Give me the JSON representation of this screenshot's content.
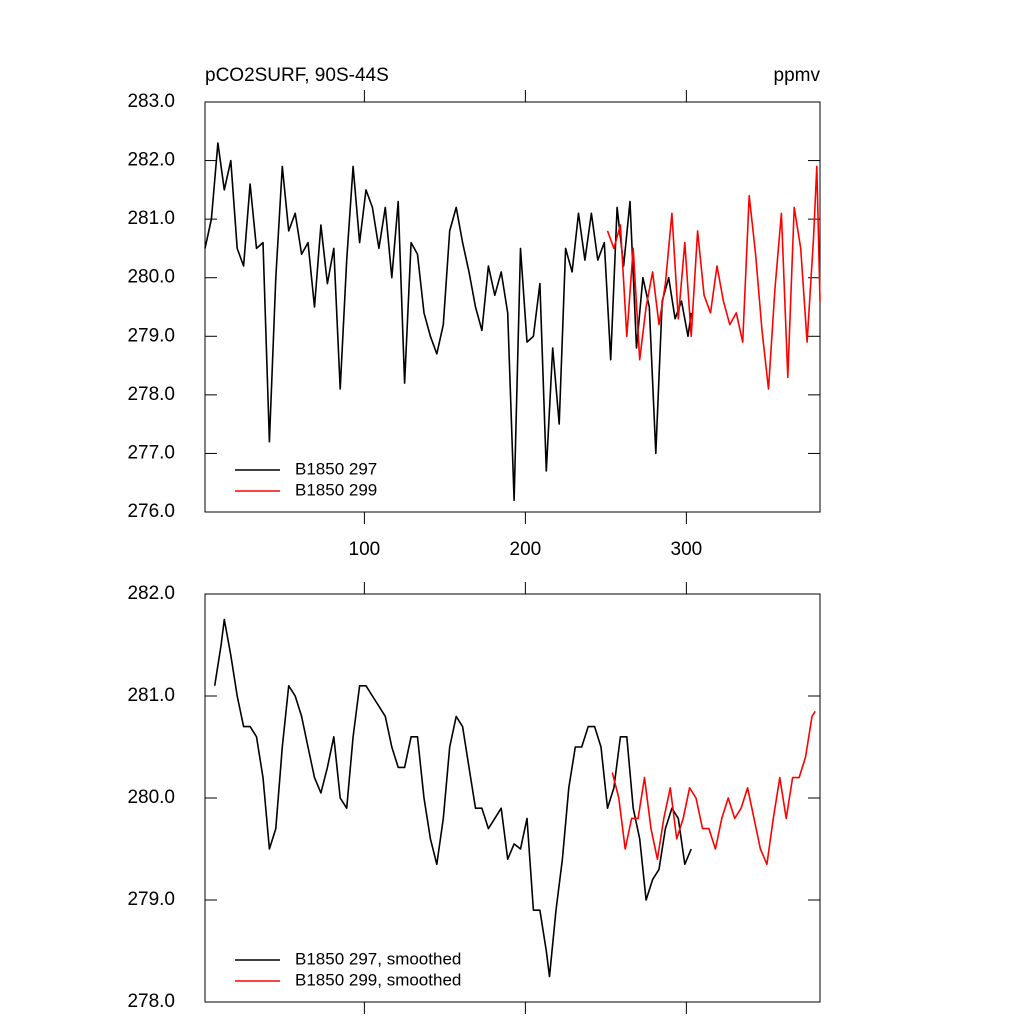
{
  "chart_data": [
    {
      "type": "line",
      "title": "pCO2SURF, 90S-44S",
      "units": "ppmv",
      "xlim": [
        1,
        383
      ],
      "xticks": [
        100,
        200,
        300
      ],
      "ylim": [
        276,
        283
      ],
      "yticks": [
        {
          "value": 276,
          "label": "276.0"
        },
        {
          "value": 277,
          "label": "277.0"
        },
        {
          "value": 278,
          "label": "278.0"
        },
        {
          "value": 279,
          "label": "279.0"
        },
        {
          "value": 280,
          "label": "280.0"
        },
        {
          "value": 281,
          "label": "281.0"
        },
        {
          "value": 282,
          "label": "282.0"
        },
        {
          "value": 283,
          "label": "283.0"
        }
      ],
      "legend": "lower left",
      "series": [
        {
          "name": "B1850 297",
          "color": "#000000",
          "x": [
            1,
            5,
            9,
            13,
            17,
            21,
            25,
            29,
            33,
            37,
            41,
            45,
            49,
            53,
            57,
            61,
            65,
            69,
            73,
            77,
            81,
            85,
            89,
            93,
            97,
            101,
            105,
            109,
            113,
            117,
            121,
            125,
            129,
            133,
            137,
            141,
            145,
            149,
            153,
            157,
            161,
            165,
            169,
            173,
            177,
            181,
            185,
            189,
            193,
            197,
            201,
            205,
            209,
            213,
            217,
            221,
            225,
            229,
            233,
            237,
            241,
            245,
            249,
            253,
            257,
            261,
            265,
            269,
            273,
            277,
            281,
            285,
            289,
            293,
            297,
            301,
            303
          ],
          "values": [
            280.5,
            281.0,
            282.3,
            281.5,
            282.0,
            280.5,
            280.2,
            281.6,
            280.5,
            280.6,
            277.2,
            280.0,
            281.9,
            280.8,
            281.1,
            280.4,
            280.6,
            279.5,
            280.9,
            279.9,
            280.5,
            278.1,
            280.3,
            281.9,
            280.6,
            281.5,
            281.2,
            280.5,
            281.2,
            280.0,
            281.3,
            278.2,
            280.6,
            280.4,
            279.4,
            279.0,
            278.7,
            279.2,
            280.8,
            281.2,
            280.6,
            280.1,
            279.5,
            279.1,
            280.2,
            279.7,
            280.1,
            279.4,
            276.2,
            280.5,
            278.9,
            279.0,
            279.9,
            276.7,
            278.8,
            277.5,
            280.5,
            280.1,
            281.1,
            280.3,
            281.1,
            280.3,
            280.6,
            278.6,
            281.2,
            280.2,
            281.3,
            278.8,
            280.0,
            279.5,
            277.0,
            279.6,
            280.0,
            279.3,
            279.6,
            279.0,
            279.4
          ]
        },
        {
          "name": "B1850 299",
          "color": "#ff0000",
          "x": [
            251,
            255,
            259,
            263,
            267,
            271,
            275,
            279,
            283,
            287,
            291,
            295,
            299,
            303,
            307,
            311,
            315,
            319,
            323,
            327,
            331,
            335,
            339,
            343,
            347,
            351,
            355,
            359,
            363,
            367,
            371,
            375,
            379,
            381,
            383
          ],
          "values": [
            280.8,
            280.5,
            280.9,
            279.0,
            280.5,
            278.6,
            279.5,
            280.1,
            279.2,
            279.9,
            281.1,
            279.3,
            280.6,
            279.0,
            280.8,
            279.7,
            279.4,
            280.2,
            279.6,
            279.2,
            279.4,
            278.9,
            281.4,
            280.4,
            279.1,
            278.1,
            279.8,
            281.1,
            278.3,
            281.2,
            280.5,
            278.9,
            280.7,
            281.9,
            279.6
          ]
        }
      ]
    },
    {
      "type": "line",
      "xlim": [
        1,
        383
      ],
      "ylim": [
        278,
        282
      ],
      "yticks": [
        {
          "value": 278,
          "label": "278.0"
        },
        {
          "value": 279,
          "label": "279.0"
        },
        {
          "value": 280,
          "label": "280.0"
        },
        {
          "value": 281,
          "label": "281.0"
        },
        {
          "value": 282,
          "label": "282.0"
        }
      ],
      "legend": "lower left",
      "series": [
        {
          "name": "B1850 297, smoothed",
          "color": "#000000",
          "x": [
            7,
            11,
            13,
            17,
            21,
            25,
            29,
            33,
            37,
            41,
            45,
            49,
            53,
            57,
            61,
            65,
            69,
            73,
            77,
            81,
            85,
            89,
            93,
            97,
            101,
            105,
            109,
            113,
            117,
            121,
            125,
            129,
            133,
            137,
            141,
            145,
            149,
            153,
            157,
            161,
            165,
            169,
            173,
            177,
            181,
            185,
            189,
            193,
            197,
            201,
            205,
            209,
            213,
            215,
            219,
            223,
            227,
            231,
            235,
            239,
            243,
            247,
            251,
            255,
            259,
            263,
            267,
            271,
            275,
            279,
            283,
            287,
            291,
            295,
            299,
            303
          ],
          "values": [
            281.1,
            281.5,
            281.75,
            281.4,
            281.0,
            280.7,
            280.7,
            280.6,
            280.2,
            279.5,
            279.7,
            280.5,
            281.1,
            281.0,
            280.8,
            280.5,
            280.2,
            280.05,
            280.3,
            280.6,
            280.0,
            279.9,
            280.6,
            281.1,
            281.1,
            281.0,
            280.9,
            280.8,
            280.5,
            280.3,
            280.3,
            280.6,
            280.6,
            280.0,
            279.6,
            279.35,
            279.8,
            280.5,
            280.8,
            280.7,
            280.3,
            279.9,
            279.9,
            279.7,
            279.8,
            279.9,
            279.4,
            279.55,
            279.5,
            279.8,
            278.9,
            278.9,
            278.5,
            278.25,
            278.9,
            279.4,
            280.1,
            280.5,
            280.5,
            280.7,
            280.7,
            280.5,
            279.9,
            280.1,
            280.6,
            280.6,
            279.9,
            279.6,
            279.0,
            279.2,
            279.3,
            279.7,
            279.9,
            279.8,
            279.35,
            279.5
          ]
        },
        {
          "name": "B1850 299, smoothed",
          "color": "#ff0000",
          "x": [
            254,
            258,
            262,
            266,
            270,
            274,
            278,
            282,
            286,
            290,
            294,
            298,
            302,
            306,
            310,
            314,
            318,
            322,
            326,
            330,
            334,
            338,
            342,
            346,
            350,
            354,
            358,
            362,
            366,
            370,
            374,
            378,
            380
          ],
          "values": [
            280.25,
            280.0,
            279.5,
            279.8,
            279.8,
            280.2,
            279.7,
            279.4,
            279.8,
            280.1,
            279.6,
            279.8,
            280.1,
            280.0,
            279.7,
            279.7,
            279.5,
            279.8,
            280.0,
            279.8,
            279.9,
            280.1,
            279.8,
            279.5,
            279.35,
            279.8,
            280.2,
            279.8,
            280.2,
            280.2,
            280.4,
            280.8,
            280.85
          ]
        }
      ]
    }
  ]
}
